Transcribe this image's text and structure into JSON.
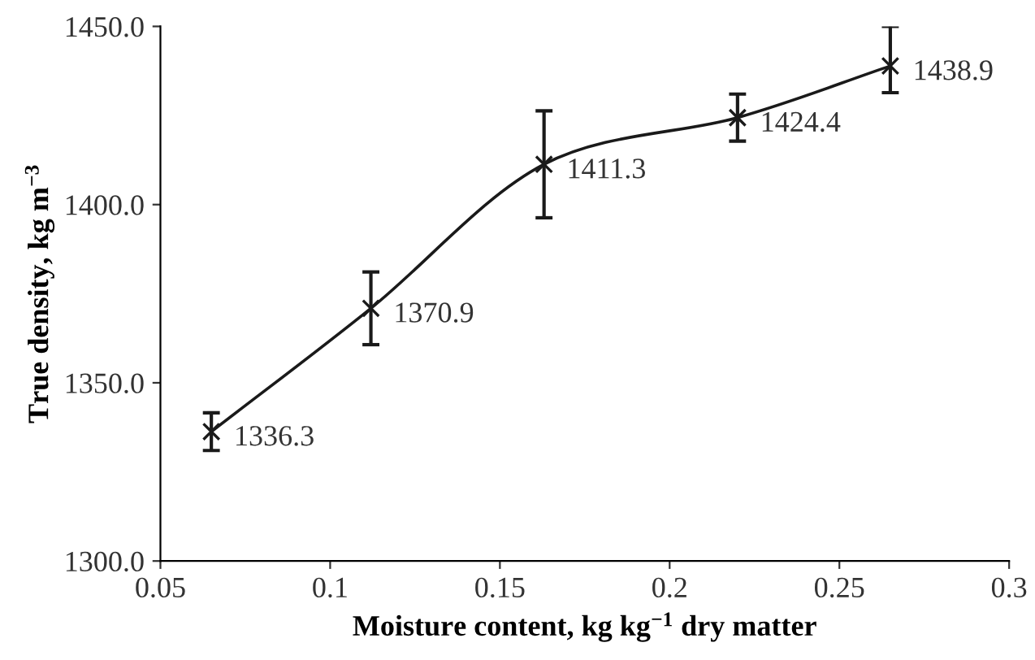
{
  "chart_data": {
    "type": "line",
    "xlabel": "Moisture content, kg kg$^{−1}$ dry matter",
    "ylabel": "True density, kg m$^{−3}$",
    "x": [
      0.065,
      0.112,
      0.163,
      0.22,
      0.265
    ],
    "values": [
      1336.3,
      1370.9,
      1411.3,
      1424.4,
      1438.9
    ],
    "errors": [
      5.3,
      10.2,
      15.0,
      6.6,
      [
        1431.4,
        1450.0
      ]
    ],
    "color": "#1a1a1a",
    "marker": "cross",
    "line_style": "solid",
    "data_labels": true,
    "grid": false,
    "legend": false,
    "xlim": [
      0.05,
      0.3
    ],
    "xticks": [
      0.05,
      0.1,
      0.15,
      0.2,
      0.25,
      0.3
    ],
    "ylim": [
      1300.0,
      1450.0
    ],
    "yticks": [
      {
        "value": 1300,
        "label": "1300.0"
      },
      {
        "value": 1350,
        "label": "1350.0"
      },
      {
        "value": 1400,
        "label": "1400.0"
      },
      {
        "value": 1450,
        "label": "1450.0"
      }
    ]
  }
}
